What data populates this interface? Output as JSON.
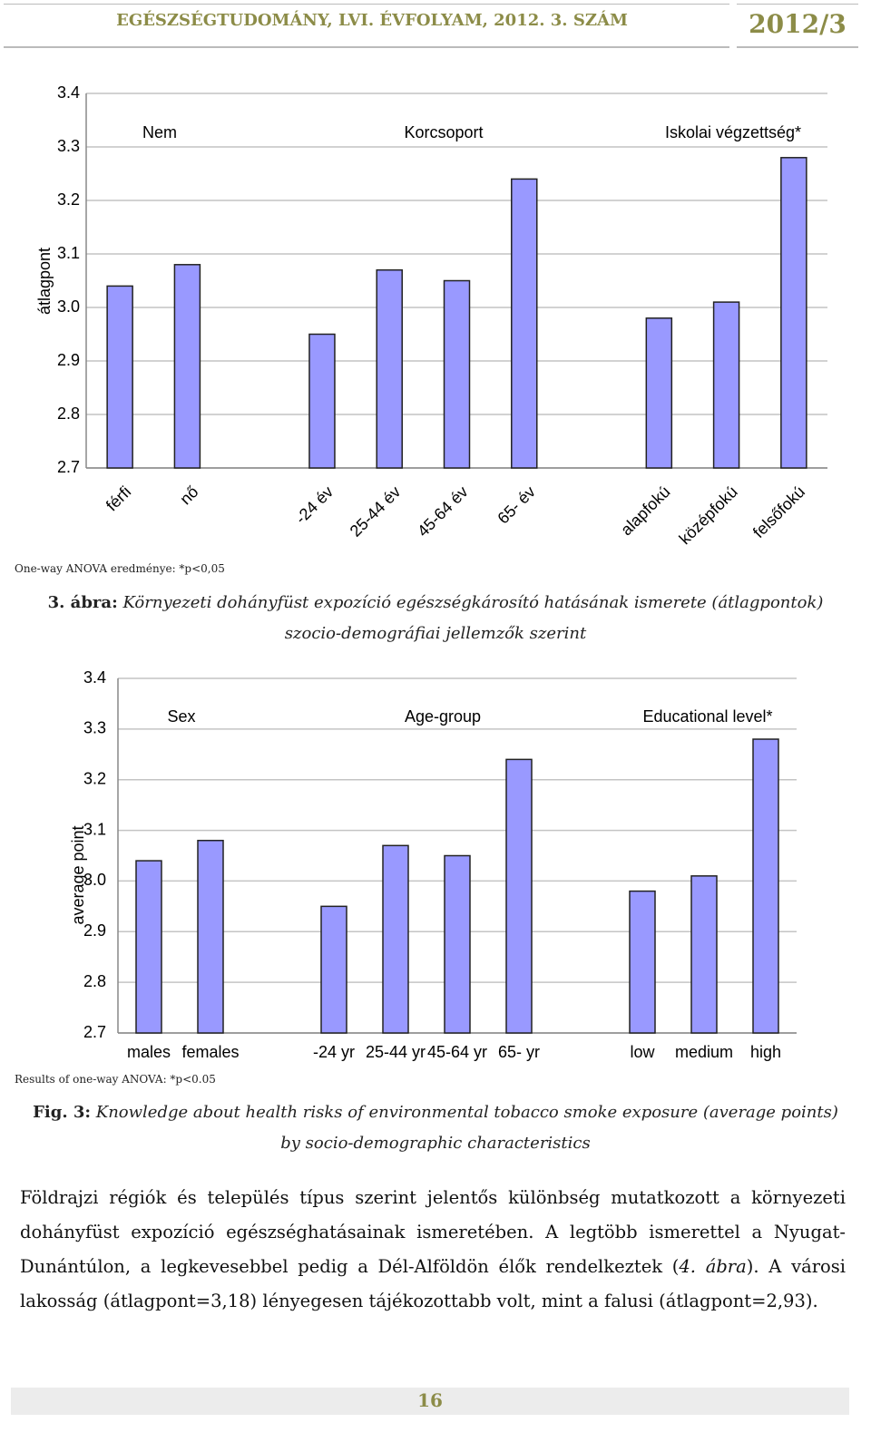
{
  "header": {
    "journal": "EGÉSZSÉGTUDOMÁNY, LVI. ÉVFOLYAM, 2012. 3. SZÁM",
    "issue": "2012/3"
  },
  "chart_data": [
    {
      "type": "bar",
      "y_label": "átlagpont",
      "group_labels": [
        "Nem",
        "Korcsoport",
        "Iskolai végzettség*"
      ],
      "categories": [
        "férfi",
        "nő",
        null,
        "-24 év",
        "25-44 év",
        "45-64 év",
        "65- év",
        null,
        "alapfokú",
        "középfokú",
        "felsőfokú"
      ],
      "values": [
        3.04,
        3.08,
        null,
        2.95,
        3.07,
        3.05,
        3.24,
        null,
        2.98,
        3.01,
        3.28
      ],
      "color": "#9999ff",
      "ylim": [
        2.7,
        3.4
      ],
      "yticks": [
        2.7,
        2.8,
        2.9,
        {
          "value": 3,
          "label": "3.0"
        },
        3.1,
        3.2,
        3.3,
        3.4
      ],
      "grid": true,
      "note": "One-way ANOVA eredménye: *p<0,05",
      "caption": {
        "label": "3. ábra:",
        "text": "Környezeti dohányfüst expozíció egészségkárosító hatásának ismerete (átlagpontok) szocio-demográfiai jellemzők szerint"
      }
    },
    {
      "type": "bar",
      "y_label": "average point",
      "group_labels": [
        "Sex",
        "Age-group",
        "Educational level*"
      ],
      "categories": [
        "males",
        "females",
        null,
        "-24 yr",
        "25-44 yr",
        "45-64 yr",
        "65- yr",
        null,
        "low",
        "medium",
        "high"
      ],
      "values": [
        3.04,
        3.08,
        null,
        2.95,
        3.07,
        3.05,
        3.24,
        null,
        2.98,
        3.01,
        3.28
      ],
      "color": "#9999ff",
      "ylim": [
        2.7,
        3.4
      ],
      "yticks": [
        2.7,
        2.8,
        2.9,
        {
          "value": 3,
          "label": "3.0"
        },
        3.1,
        3.2,
        3.3,
        3.4
      ],
      "grid": true,
      "note": "Results of one-way ANOVA: *p<0.05",
      "caption": {
        "label": "Fig. 3:",
        "text": "Knowledge about health risks of environmental tobacco smoke exposure (average points) by socio-demographic characteristics"
      }
    }
  ],
  "paragraph": [
    "Földrajzi régiók és település típus szerint jelentős különbség mutatkozott a környezeti dohányfüst expozíció egészséghatásainak ismeretében. A legtöbb ismerettel a Nyugat-Dunántúlon, a legkevesebbel pedig a Dél-Alföldön élők rendelkeztek (",
    "4. ábra",
    "). A városi lakosság (átlagpont=3,18) lényegesen tájékozottabb volt, mint a falusi (átlagpont=2,93)."
  ],
  "footer": {
    "page": "16"
  }
}
